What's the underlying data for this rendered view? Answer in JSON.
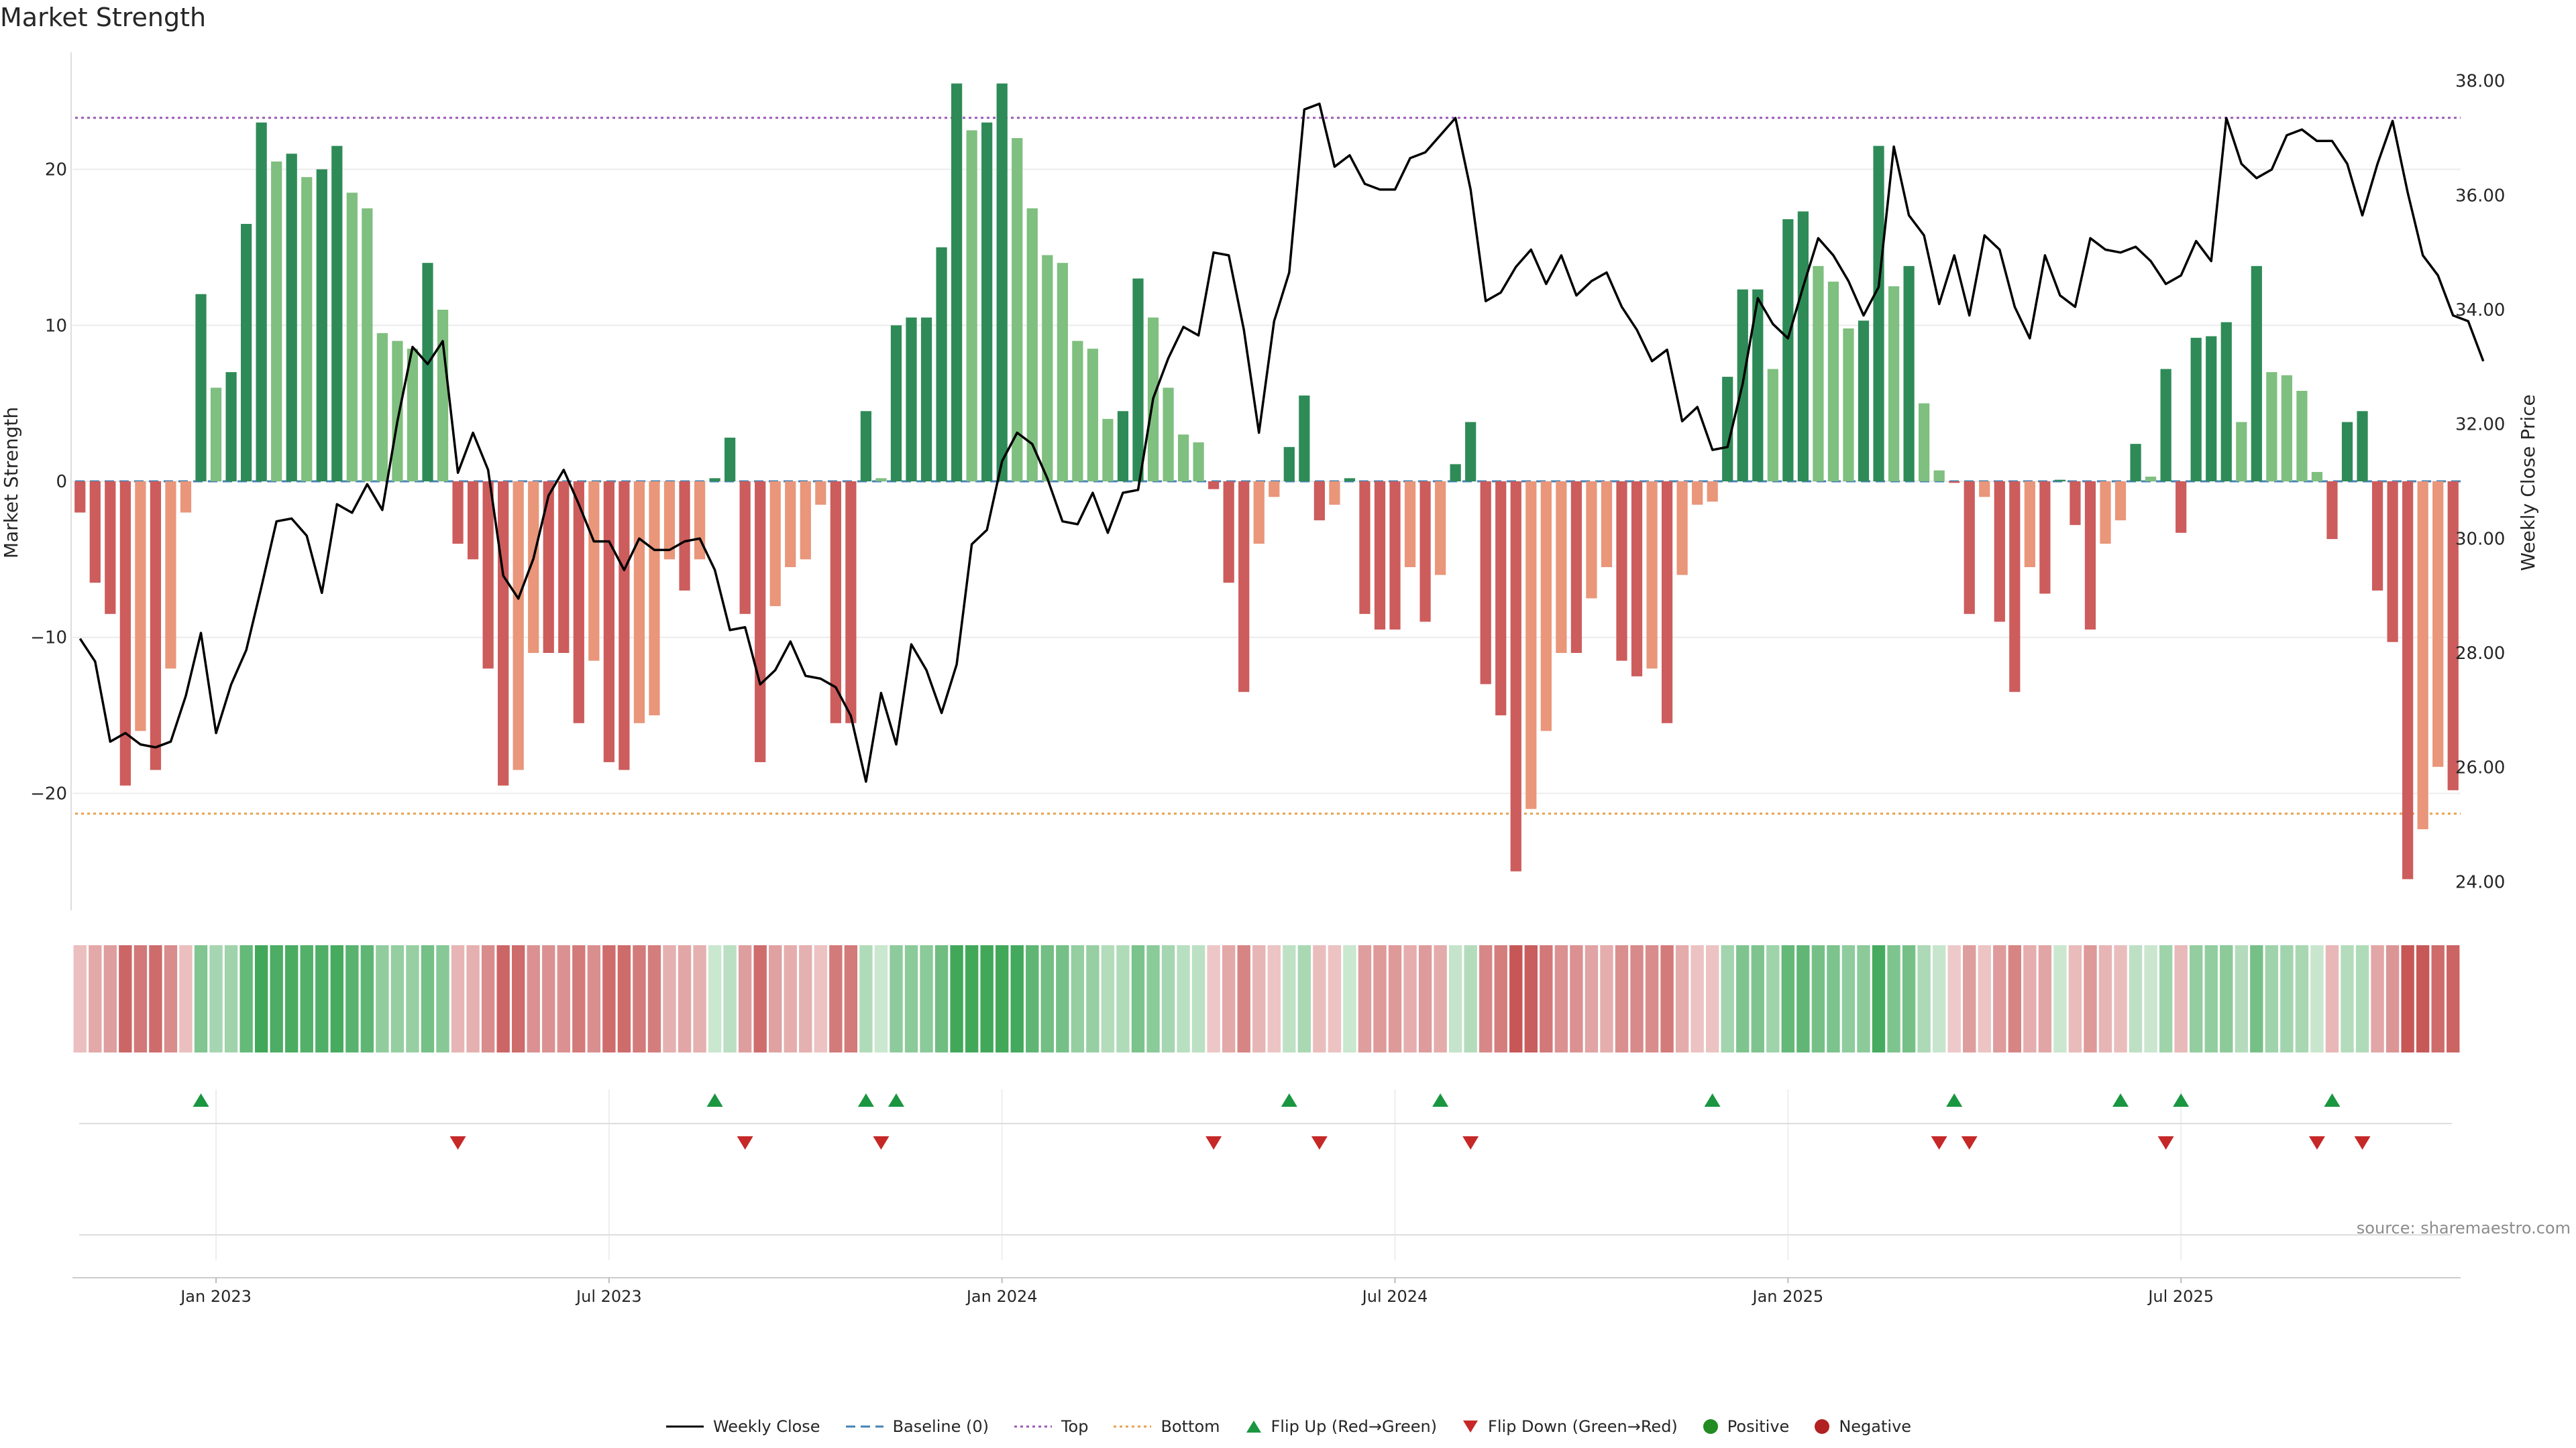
{
  "title": "Market Strength",
  "source_note": "source: sharemaestro.com",
  "legend": [
    {
      "key": "close",
      "label": "Weekly Close"
    },
    {
      "key": "baseline",
      "label": "Baseline (0)"
    },
    {
      "key": "top",
      "label": "Top"
    },
    {
      "key": "bottom",
      "label": "Bottom"
    },
    {
      "key": "flipup",
      "label": "Flip Up (Red→Green)"
    },
    {
      "key": "flipdown",
      "label": "Flip Down (Green→Red)"
    },
    {
      "key": "positive",
      "label": "Positive"
    },
    {
      "key": "negative",
      "label": "Negative"
    }
  ],
  "colors": {
    "pos_dark": "#2e8b57",
    "pos_light": "#7fbf7f",
    "neg_dark": "#cd5c5c",
    "neg_light": "#e9967a",
    "close_line": "#000000",
    "baseline": "#4682b4",
    "top_line": "#9b59b6",
    "bottom_line": "#e8a04a",
    "flip_up": "#1a9641",
    "flip_down": "#c62828",
    "legend_positive": "#228b22",
    "legend_negative": "#b22222"
  },
  "chart_data": {
    "type": "bar+line",
    "title": "Market Strength",
    "ylabel_left": "Market Strength",
    "ylabel_right": "Weekly Close Price",
    "ylim_left": [
      -27.5,
      27.5
    ],
    "ylim_right": [
      23.5,
      38.5
    ],
    "yticks_left": [
      -20,
      -10,
      0,
      10,
      20
    ],
    "yticks_right": [
      "24.00",
      "26.00",
      "28.00",
      "30.00",
      "32.00",
      "34.00",
      "36.00",
      "38.00"
    ],
    "x_tick_labels": [
      "Jan 2023",
      "Jul 2023",
      "Jan 2024",
      "Jul 2024",
      "Jan 2025",
      "Jul 2025"
    ],
    "x_tick_weeks": [
      9,
      35,
      61,
      87,
      113,
      139
    ],
    "top_level": 23.3,
    "bottom_level": -21.3,
    "series": [
      {
        "name": "Market Strength",
        "values": [
          -2,
          -6.5,
          -8.5,
          -19.5,
          -16,
          -18.5,
          -12,
          -2,
          12,
          6,
          7,
          16.5,
          23,
          20.5,
          21,
          19.5,
          20,
          21.5,
          18.5,
          17.5,
          9.5,
          9,
          8.5,
          14,
          11,
          -4,
          -5,
          -12,
          -19.5,
          -18.5,
          -11,
          -11,
          -11,
          -15.5,
          -11.5,
          -18,
          -18.5,
          -15.5,
          -15,
          -5,
          -7,
          -5,
          0.2,
          2.8,
          -8.5,
          -18,
          -8,
          -5.5,
          -5,
          -1.5,
          -15.5,
          -15.5,
          4.5,
          0.2,
          10,
          10.5,
          10.5,
          15,
          25.5,
          22.5,
          23,
          25.5,
          22,
          17.5,
          14.5,
          14,
          9,
          8.5,
          4,
          4.5,
          13,
          10.5,
          6,
          3,
          2.5,
          -0.5,
          -6.5,
          -13.5,
          -4,
          -1,
          2.2,
          5.5,
          -2.5,
          -1.5,
          0.2,
          -8.5,
          -9.5,
          -9.5,
          -5.5,
          -9,
          -6,
          1.1,
          3.8,
          -13,
          -15,
          -25,
          -21,
          -16,
          -11,
          -11,
          -7.5,
          -5.5,
          -11.5,
          -12.5,
          -12,
          -15.5,
          -6,
          -1.5,
          -1.3,
          6.7,
          12.3,
          12.3,
          7.2,
          16.8,
          17.3,
          13.8,
          12.8,
          9.8,
          10.3,
          21.5,
          12.5,
          13.8,
          5,
          0.7,
          -0.1,
          -8.5,
          -1,
          -9,
          -13.5,
          -5.5,
          -7.2,
          0.1,
          -2.8,
          -9.5,
          -4,
          -2.5,
          2.4,
          0.3,
          7.2,
          -3.3,
          9.2,
          9.3,
          10.2,
          3.8,
          13.8,
          7,
          6.8,
          5.8,
          0.6,
          -3.7,
          3.8,
          4.5,
          -7,
          -10.3,
          -25.5,
          -22.3,
          -18.3,
          -19.8
        ]
      },
      {
        "name": "Weekly Close",
        "values": [
          28.25,
          27.85,
          26.45,
          26.6,
          26.4,
          26.35,
          26.45,
          27.25,
          28.35,
          26.6,
          27.45,
          28.05,
          29.15,
          30.3,
          30.35,
          30.05,
          29.05,
          30.6,
          30.45,
          30.95,
          30.5,
          32.05,
          33.35,
          33.05,
          33.45,
          31.15,
          31.85,
          31.2,
          29.35,
          28.95,
          29.65,
          30.75,
          31.2,
          30.6,
          29.95,
          29.95,
          29.45,
          30.0,
          29.8,
          29.8,
          29.95,
          30.0,
          29.45,
          28.4,
          28.45,
          27.45,
          27.7,
          28.2,
          27.6,
          27.55,
          27.4,
          26.9,
          25.75,
          27.3,
          26.4,
          28.15,
          27.7,
          26.95,
          27.8,
          29.9,
          30.15,
          31.35,
          31.85,
          31.65,
          31.05,
          30.3,
          30.25,
          30.8,
          30.1,
          30.8,
          30.85,
          32.45,
          33.15,
          33.7,
          33.55,
          35.0,
          34.95,
          33.65,
          31.85,
          33.8,
          34.65,
          37.5,
          37.6,
          36.5,
          36.7,
          36.2,
          36.1,
          36.1,
          36.65,
          36.75,
          37.05,
          37.35,
          36.1,
          34.15,
          34.3,
          34.75,
          35.05,
          34.45,
          34.95,
          34.25,
          34.5,
          34.65,
          34.05,
          33.65,
          33.1,
          33.3,
          32.05,
          32.3,
          31.55,
          31.6,
          32.7,
          34.2,
          33.75,
          33.5,
          34.4,
          35.25,
          34.95,
          34.5,
          33.9,
          34.4,
          36.85,
          35.65,
          35.3,
          34.1,
          34.95,
          33.9,
          35.3,
          35.05,
          34.05,
          33.5,
          34.95,
          34.25,
          34.05,
          35.25,
          35.05,
          35.0,
          35.1,
          34.85,
          34.45,
          34.6,
          35.2,
          34.85,
          37.35,
          36.55,
          36.3,
          36.45,
          37.05,
          37.15,
          36.95,
          36.95,
          36.55,
          35.65,
          36.55,
          37.3,
          36.05,
          34.95,
          34.6,
          33.9,
          33.8,
          33.1
        ]
      }
    ],
    "flip_up_weeks": [
      8,
      42,
      52,
      54,
      80,
      90,
      108,
      124,
      135,
      139,
      149
    ],
    "flip_down_weeks": [
      25,
      44,
      53,
      75,
      82,
      92,
      123,
      125,
      138,
      148,
      151
    ]
  }
}
